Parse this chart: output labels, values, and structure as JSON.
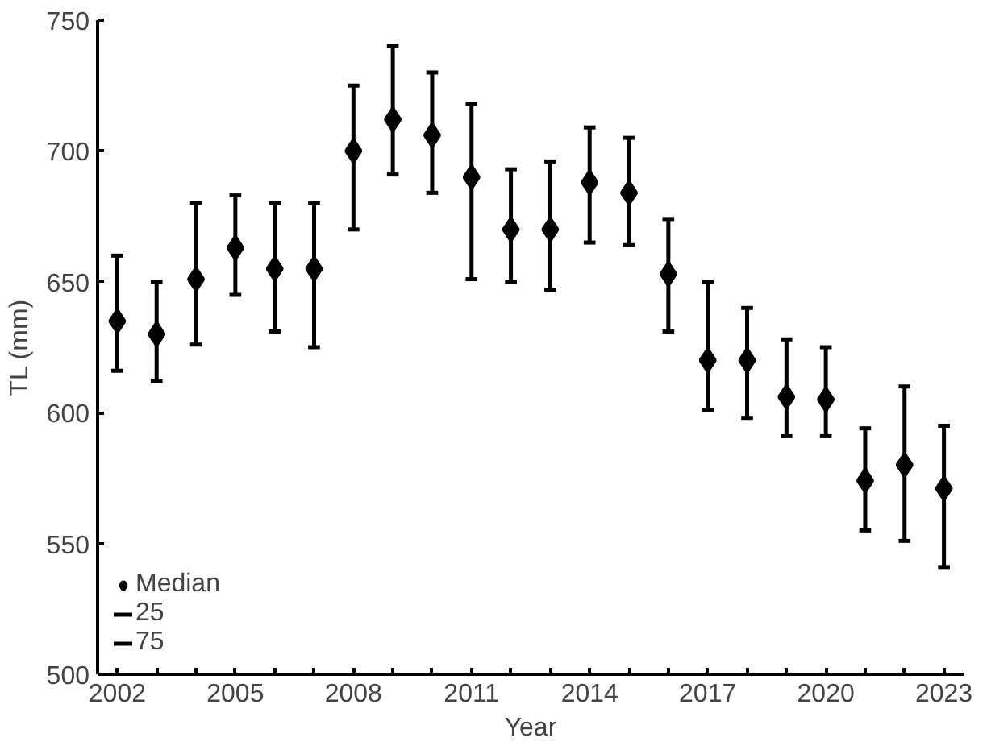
{
  "chart_data": {
    "type": "scatter",
    "xlabel": "Year",
    "ylabel": "TL (mm)",
    "x": [
      2002,
      2003,
      2004,
      2005,
      2006,
      2007,
      2008,
      2009,
      2010,
      2011,
      2012,
      2013,
      2014,
      2015,
      2016,
      2017,
      2018,
      2019,
      2020,
      2021,
      2022,
      2023
    ],
    "xlim": [
      2001.5,
      2023.5
    ],
    "xticks": [
      {
        "value": 2002,
        "label": "2002"
      },
      {
        "value": 2003,
        "label": null
      },
      {
        "value": 2004,
        "label": null
      },
      {
        "value": 2005,
        "label": "2005"
      },
      {
        "value": 2006,
        "label": null
      },
      {
        "value": 2007,
        "label": null
      },
      {
        "value": 2008,
        "label": "2008"
      },
      {
        "value": 2009,
        "label": null
      },
      {
        "value": 2010,
        "label": null
      },
      {
        "value": 2011,
        "label": "2011"
      },
      {
        "value": 2012,
        "label": null
      },
      {
        "value": 2013,
        "label": null
      },
      {
        "value": 2014,
        "label": "2014"
      },
      {
        "value": 2015,
        "label": null
      },
      {
        "value": 2016,
        "label": null
      },
      {
        "value": 2017,
        "label": "2017"
      },
      {
        "value": 2018,
        "label": null
      },
      {
        "value": 2019,
        "label": null
      },
      {
        "value": 2020,
        "label": "2020"
      },
      {
        "value": 2021,
        "label": null
      },
      {
        "value": 2022,
        "label": null
      },
      {
        "value": 2023,
        "label": "2023"
      }
    ],
    "ylim": [
      500,
      750
    ],
    "yticks": [
      500,
      550,
      600,
      650,
      700,
      750
    ],
    "series": [
      {
        "name": "Median",
        "color": "#000000",
        "marker": "diamond",
        "values": [
          635,
          630,
          651,
          663,
          655,
          655,
          700,
          712,
          706,
          690,
          670,
          670,
          688,
          684,
          653,
          620,
          620,
          606,
          605,
          574,
          580,
          571
        ],
        "errors": [
          [
            616,
            660
          ],
          [
            612,
            650
          ],
          [
            626,
            680
          ],
          [
            645,
            683
          ],
          [
            631,
            680
          ],
          [
            625,
            680
          ],
          [
            670,
            725
          ],
          [
            691,
            740
          ],
          [
            684,
            730
          ],
          [
            651,
            718
          ],
          [
            650,
            693
          ],
          [
            647,
            696
          ],
          [
            665,
            709
          ],
          [
            664,
            705
          ],
          [
            631,
            674
          ],
          [
            601,
            650
          ],
          [
            598,
            640
          ],
          [
            591,
            628
          ],
          [
            591,
            625
          ],
          [
            555,
            594
          ],
          [
            551,
            610
          ],
          [
            541,
            595
          ]
        ]
      }
    ],
    "annotations": [
      "25",
      "75"
    ],
    "grid": false,
    "legend": "bottom left"
  }
}
